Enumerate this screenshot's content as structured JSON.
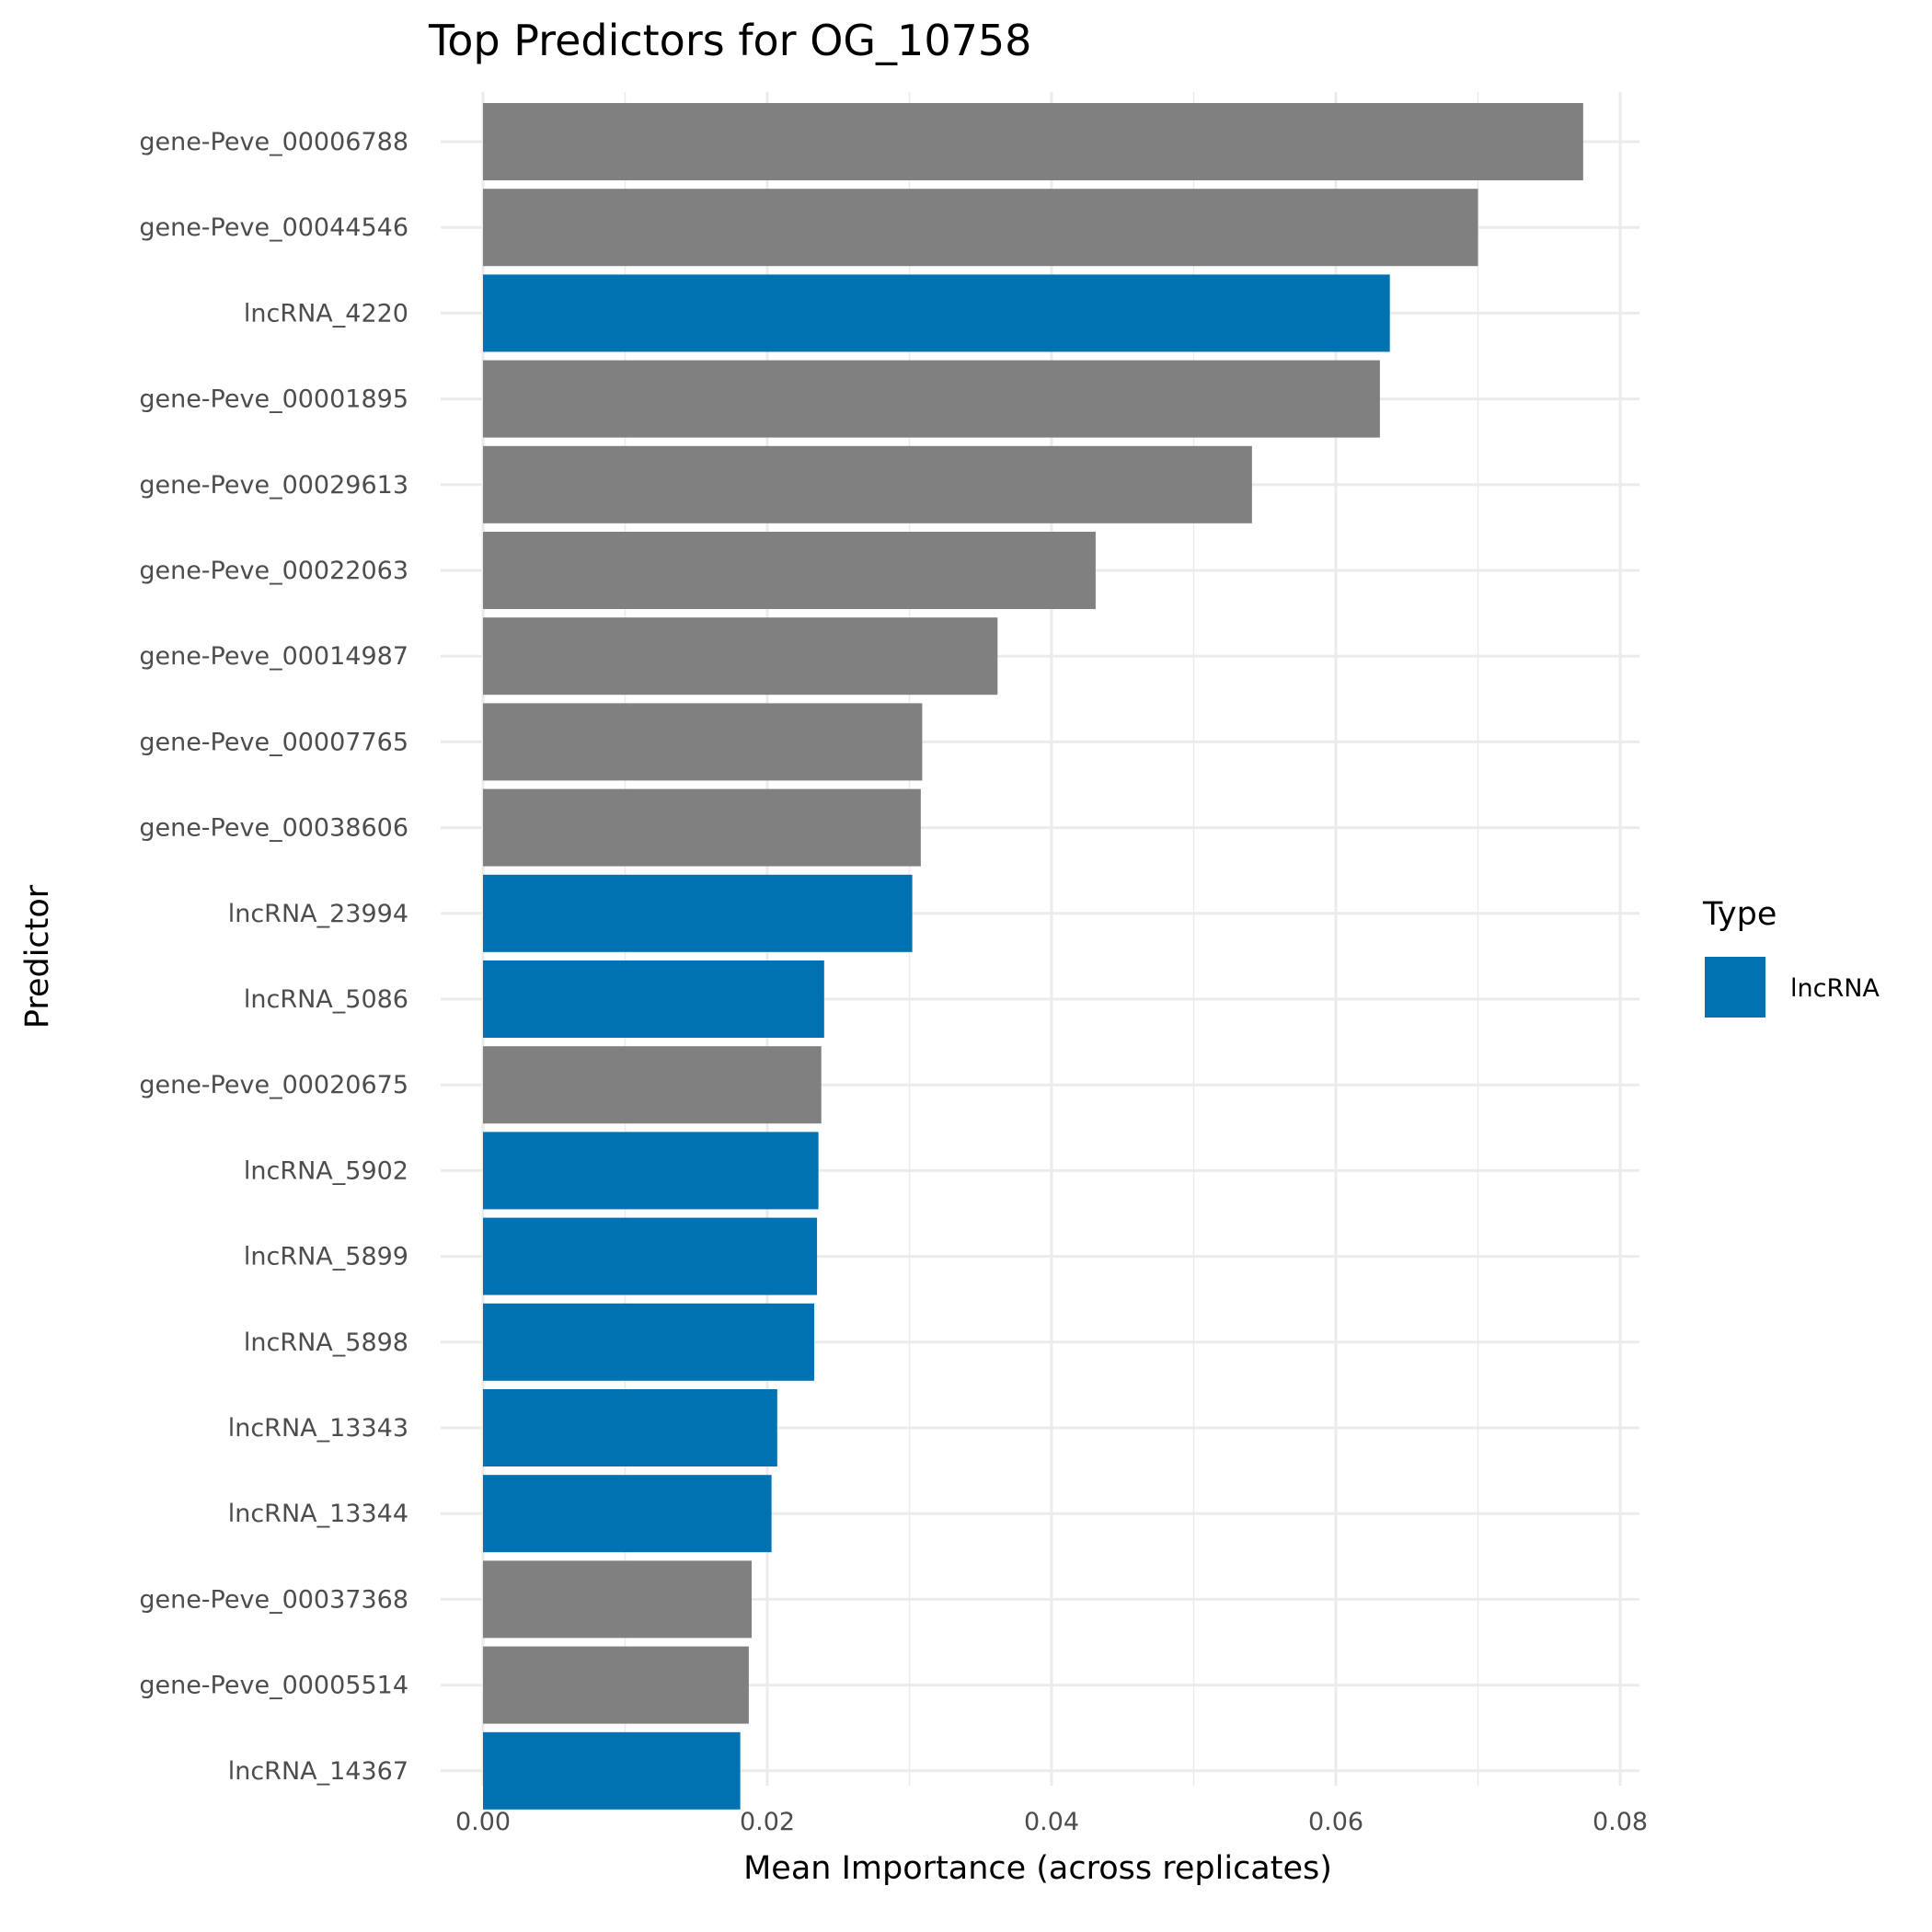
{
  "chart_data": {
    "type": "bar",
    "orientation": "horizontal",
    "title": "Top Predictors for OG_10758",
    "xlabel": "Mean Importance (across replicates)",
    "ylabel": "Predictor",
    "xlim": [
      0,
      0.08
    ],
    "xticks": [
      "0.00",
      "0.02",
      "0.04",
      "0.06",
      "0.08"
    ],
    "grid": true,
    "legend": {
      "title": "Type",
      "position": "right",
      "entries": [
        {
          "label": "lncRNA",
          "color": "#0072B2"
        }
      ]
    },
    "colors": {
      "lncRNA": "#0072B2",
      "gene": "#808080"
    },
    "categories": [
      "gene-Peve_00006788",
      "gene-Peve_00044546",
      "lncRNA_4220",
      "gene-Peve_00001895",
      "gene-Peve_00029613",
      "gene-Peve_00022063",
      "gene-Peve_00014987",
      "gene-Peve_00007765",
      "gene-Peve_00038606",
      "lncRNA_23994",
      "lncRNA_5086",
      "gene-Peve_00020675",
      "lncRNA_5902",
      "lncRNA_5899",
      "lncRNA_5898",
      "lncRNA_13343",
      "lncRNA_13344",
      "gene-Peve_00037368",
      "gene-Peve_00005514",
      "lncRNA_14367"
    ],
    "types": [
      "gene",
      "gene",
      "lncRNA",
      "gene",
      "gene",
      "gene",
      "gene",
      "gene",
      "gene",
      "lncRNA",
      "lncRNA",
      "gene",
      "lncRNA",
      "lncRNA",
      "lncRNA",
      "lncRNA",
      "lncRNA",
      "gene",
      "gene",
      "lncRNA"
    ],
    "values": [
      0.0774,
      0.07,
      0.0638,
      0.0631,
      0.0541,
      0.0431,
      0.0362,
      0.0309,
      0.0308,
      0.0302,
      0.024,
      0.0238,
      0.0236,
      0.0235,
      0.0233,
      0.0207,
      0.0203,
      0.0189,
      0.0187,
      0.0181
    ]
  }
}
